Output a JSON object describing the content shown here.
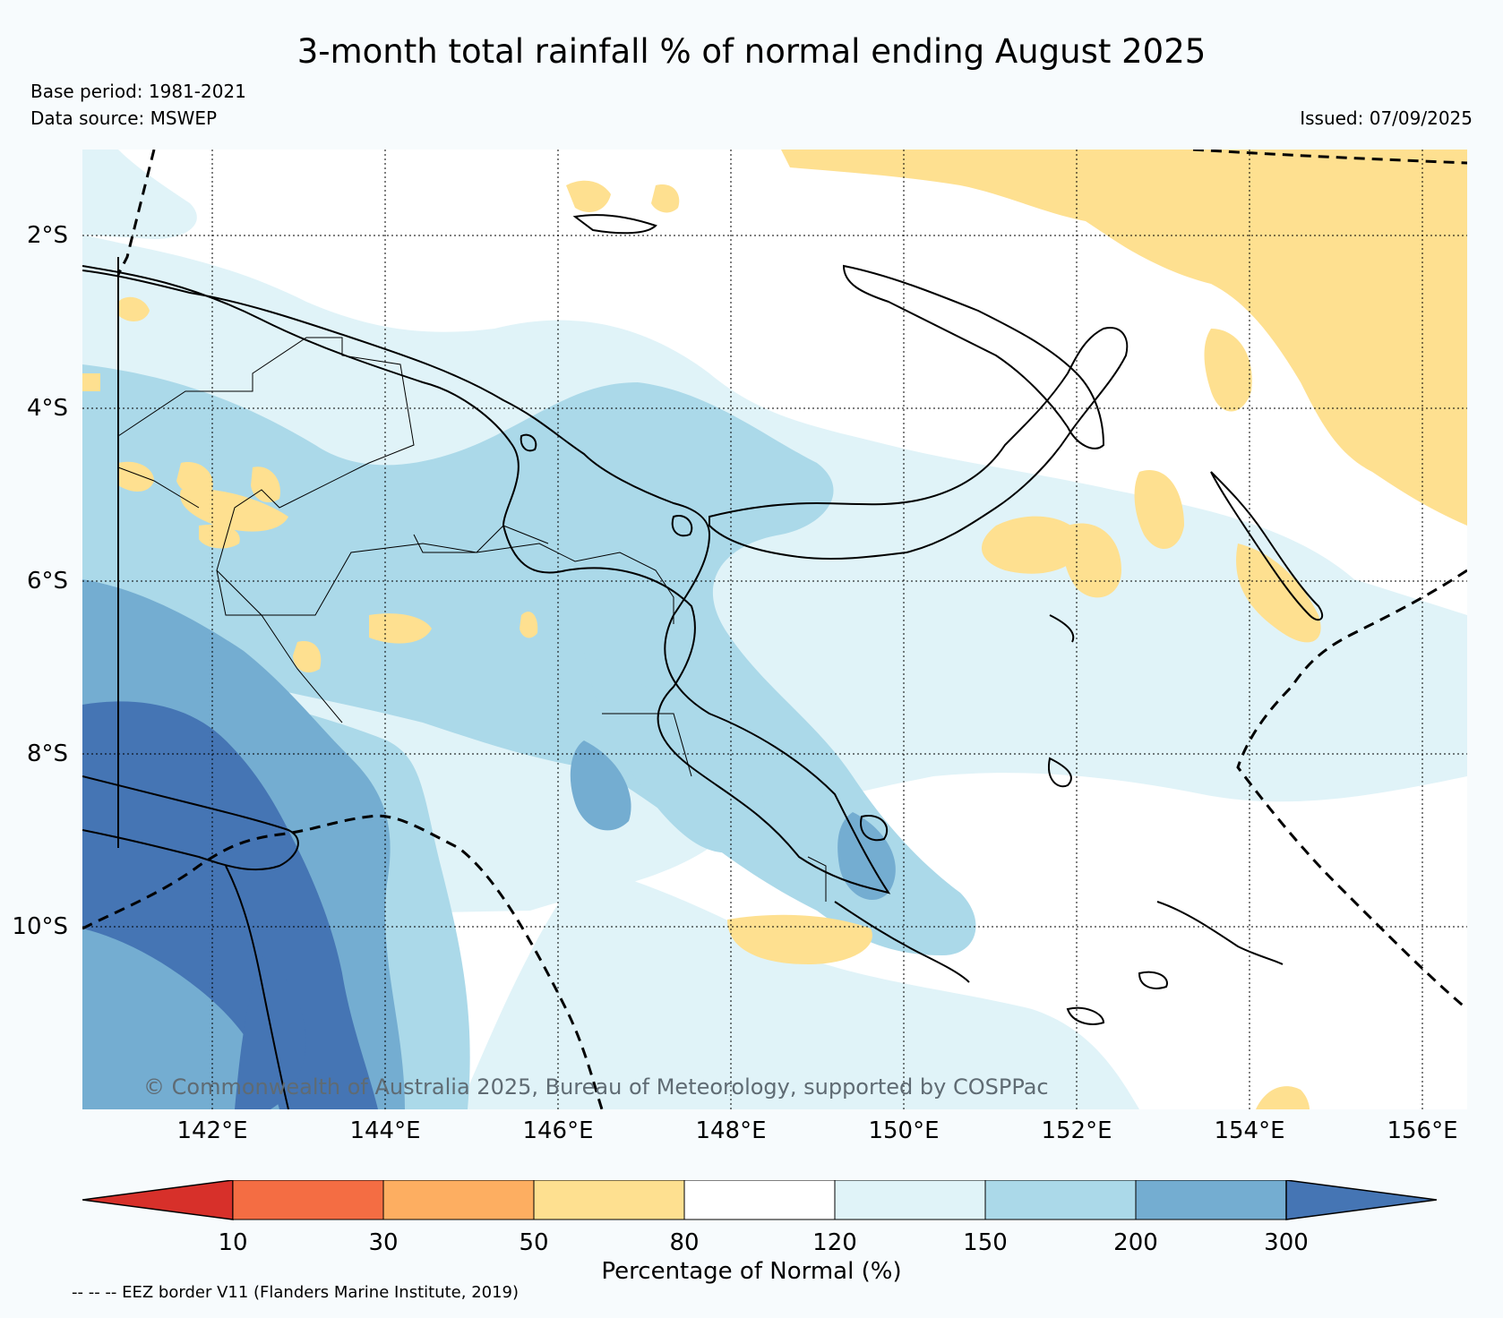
{
  "title": "3-month total rainfall % of normal ending August 2025",
  "base_period": "Base period: 1981-2021",
  "data_source": "Data source: MSWEP",
  "issued": "Issued: 07/09/2025",
  "lat_labels": [
    "2°S",
    "4°S",
    "6°S",
    "8°S",
    "10°S"
  ],
  "lon_labels": [
    "142°E",
    "144°E",
    "146°E",
    "148°E",
    "150°E",
    "152°E",
    "154°E",
    "156°E"
  ],
  "copyright": "© Commonwealth of Australia 2025, Bureau of Meteorology, supported by COSPPac",
  "colorbar": {
    "ticks": [
      "10",
      "30",
      "50",
      "80",
      "120",
      "150",
      "200",
      "300"
    ],
    "colors": [
      "#d7302a",
      "#f46d43",
      "#fdae61",
      "#fee090",
      "#ffffff",
      "#e0f3f8",
      "#abd9e9",
      "#74add1",
      "#4575b4"
    ],
    "label": "Percentage of Normal (%)"
  },
  "eez_note": "-- -- -- EEZ border V11 (Flanders Marine Institute, 2019)",
  "colors": {
    "c10_30": "#f46d43",
    "c30_50": "#fdae61",
    "c50_80": "#fee090",
    "c80_120": "#ffffff",
    "c120_150": "#e0f3f8",
    "c150_200": "#abd9e9",
    "c200_300": "#74add1",
    "c300": "#4575b4"
  }
}
